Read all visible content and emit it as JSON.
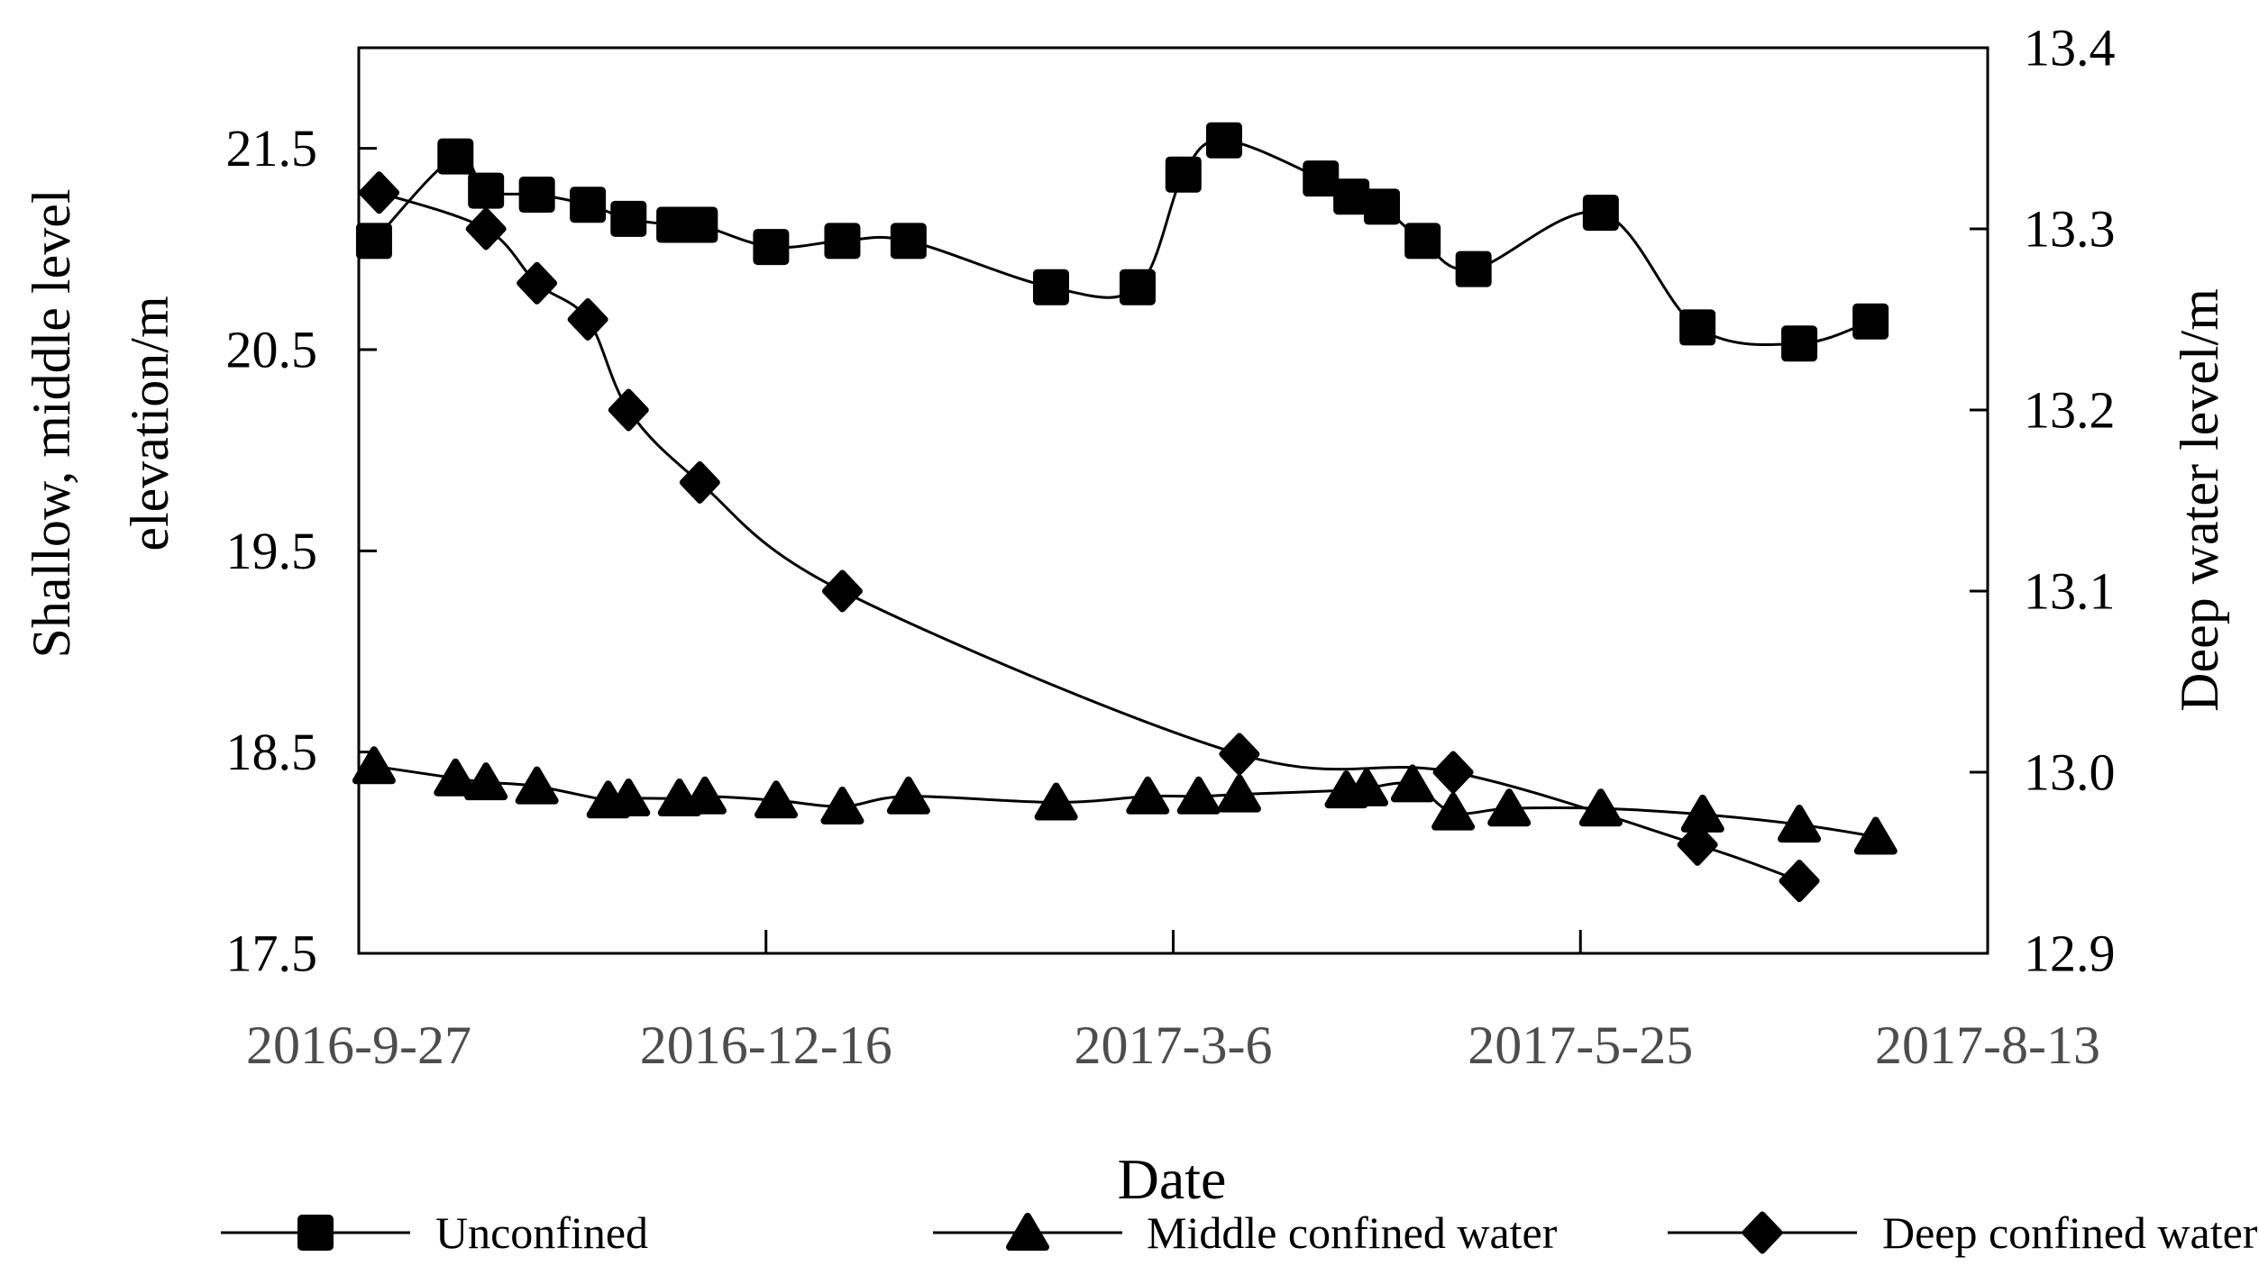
{
  "figure": {
    "x_axis_label": "Date",
    "left_axis": {
      "title_line1": "Shallow, middle level",
      "title_line2": "elevation/m",
      "tick_labels": [
        "17.5",
        "18.5",
        "19.5",
        "20.5",
        "21.5"
      ],
      "tick_values": [
        17.5,
        18.5,
        19.5,
        20.5,
        21.5
      ],
      "min": 17.5,
      "max": 22.0
    },
    "right_axis": {
      "title": "Deep water level/m",
      "tick_labels": [
        "12.9",
        "13.0",
        "13.1",
        "13.2",
        "13.3",
        "13.4"
      ],
      "tick_values": [
        12.9,
        13.0,
        13.1,
        13.2,
        13.3,
        13.4
      ],
      "min": 12.9,
      "max": 13.4
    },
    "x_axis": {
      "tick_labels": [
        "2016-9-27",
        "2016-12-16",
        "2017-3-6",
        "2017-5-25",
        "2017-8-13"
      ],
      "tick_day_values": [
        0,
        80,
        160,
        240,
        320
      ],
      "min_day": 0,
      "max_day": 320
    }
  },
  "chart_data": {
    "type": "line",
    "title": "",
    "xlabel": "Date",
    "ylabel_left": "Shallow, middle level elevation/m",
    "ylabel_right": "Deep water level/m",
    "x_unit": "days since 2016-9-27",
    "x_tick_labels": [
      "2016-9-27",
      "2016-12-16",
      "2017-3-6",
      "2017-5-25",
      "2017-8-13"
    ],
    "ylim_left": [
      17.5,
      22.0
    ],
    "ylim_right": [
      12.9,
      13.4
    ],
    "grid": false,
    "legend_position": "bottom",
    "series": [
      {
        "name": "Unconfined",
        "axis": "left",
        "marker": "square",
        "x_days": [
          3,
          19,
          25,
          35,
          45,
          53,
          62,
          67,
          81,
          95,
          108,
          136,
          153,
          162,
          170,
          189,
          195,
          201,
          209,
          219,
          244,
          263,
          283,
          297
        ],
        "values": [
          21.04,
          21.46,
          21.29,
          21.27,
          21.22,
          21.15,
          21.12,
          21.12,
          21.01,
          21.04,
          21.04,
          20.81,
          20.81,
          21.37,
          21.54,
          21.35,
          21.26,
          21.21,
          21.04,
          20.9,
          21.18,
          20.61,
          20.53,
          20.64
        ]
      },
      {
        "name": "Middle confined water",
        "axis": "left",
        "marker": "triangle",
        "x_days": [
          3,
          19,
          25,
          35,
          49,
          53,
          63,
          68,
          82,
          95,
          108,
          137,
          155,
          165,
          173,
          194,
          198,
          207,
          215,
          226,
          244,
          264,
          283,
          298
        ],
        "values": [
          18.43,
          18.37,
          18.35,
          18.33,
          18.26,
          18.27,
          18.27,
          18.28,
          18.26,
          18.23,
          18.28,
          18.25,
          18.28,
          18.28,
          18.29,
          18.31,
          18.32,
          18.34,
          18.2,
          18.22,
          18.22,
          18.19,
          18.14,
          18.08
        ]
      },
      {
        "name": "Deep confined water",
        "axis": "right",
        "marker": "diamond",
        "x_days": [
          4,
          25,
          35,
          45,
          53,
          67,
          95,
          173,
          215,
          263,
          283
        ],
        "values": [
          13.32,
          13.3,
          13.27,
          13.25,
          13.2,
          13.16,
          13.1,
          13.01,
          13.0,
          12.96,
          12.94
        ]
      }
    ]
  },
  "legend": {
    "items": [
      {
        "label": "Unconfined",
        "marker": "square"
      },
      {
        "label": "Middle confined water",
        "marker": "triangle"
      },
      {
        "label": "Deep confined water",
        "marker": "diamond"
      }
    ]
  },
  "colors": {
    "series": "#000000",
    "axis": "#000000",
    "x_tick_labels": "#4d4d4d",
    "background": "#ffffff"
  }
}
